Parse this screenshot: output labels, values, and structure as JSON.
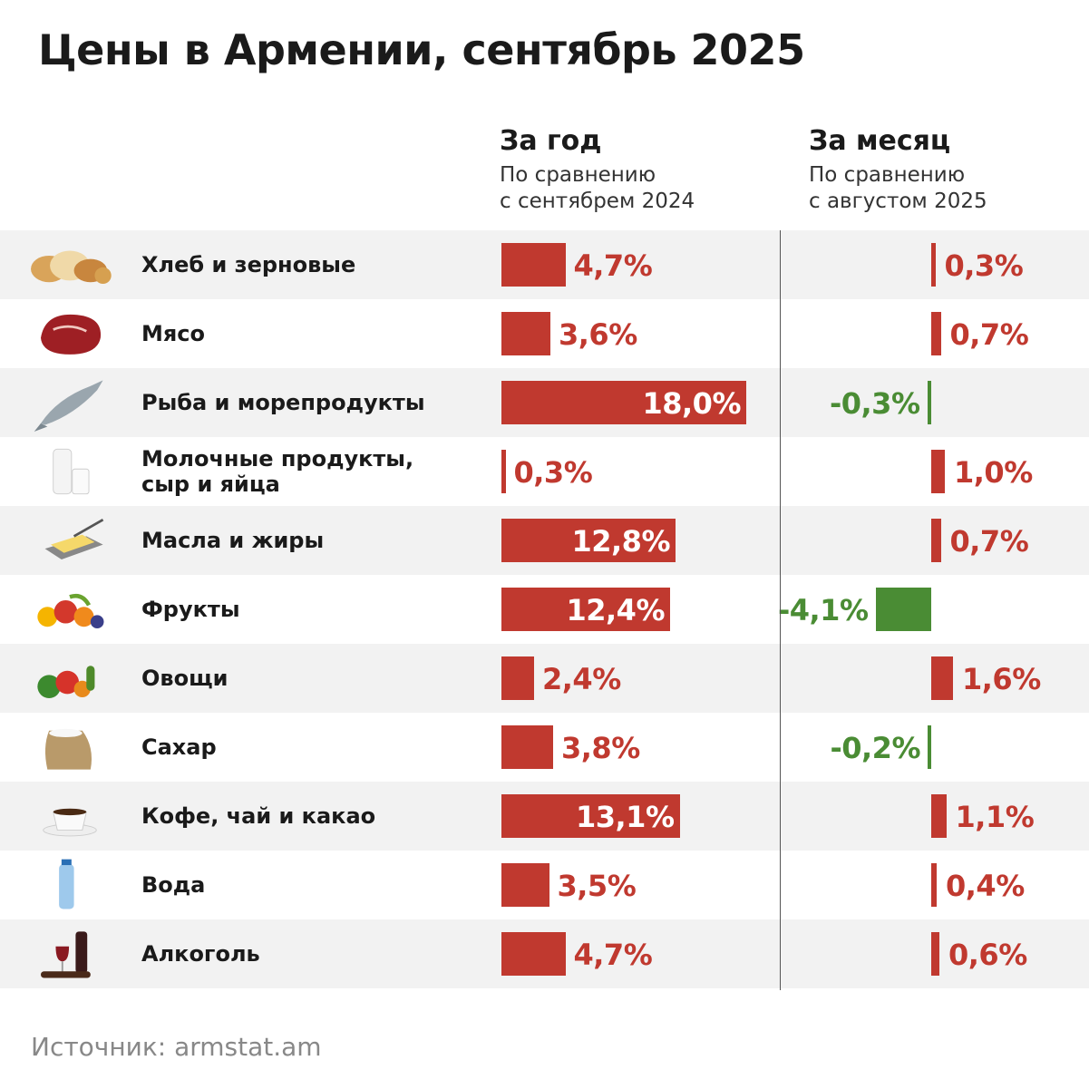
{
  "chart_data": {
    "type": "bar",
    "title": "Цены в Армении, сентябрь 2025",
    "columns": [
      {
        "key": "year",
        "heading": "За год",
        "subtitle_lines": [
          "По сравнению",
          "с сентябрем 2024"
        ]
      },
      {
        "key": "month",
        "heading": "За месяц",
        "subtitle_lines": [
          "По сравнению",
          "с августом 2025"
        ]
      }
    ],
    "categories": [
      "Хлеб и зерновые",
      "Мясо",
      "Рыба и морепродукты",
      "Молочные продукты, сыр и яйца",
      "Масла и жиры",
      "Фрукты",
      "Овощи",
      "Сахар",
      "Кофе, чай и какао",
      "Вода",
      "Алкоголь"
    ],
    "series": [
      {
        "key": "year",
        "values": [
          4.7,
          3.6,
          18.0,
          0.3,
          12.8,
          12.4,
          2.4,
          3.8,
          13.1,
          3.5,
          4.7
        ],
        "labels": [
          "4,7%",
          "3,6%",
          "18,0%",
          "0,3%",
          "12,8%",
          "12,4%",
          "2,4%",
          "3,8%",
          "13,1%",
          "3,5%",
          "4,7%"
        ]
      },
      {
        "key": "month",
        "values": [
          0.3,
          0.7,
          -0.3,
          1.0,
          0.7,
          -4.1,
          1.6,
          -0.2,
          1.1,
          0.4,
          0.6
        ],
        "labels": [
          "0,3%",
          "0,7%",
          "-0,3%",
          "1,0%",
          "0,7%",
          "-4,1%",
          "1,6%",
          "-0,2%",
          "1,1%",
          "0,4%",
          "0,6%"
        ]
      }
    ],
    "icons": [
      "bread-icon",
      "meat-icon",
      "fish-icon",
      "milk-icon",
      "butter-icon",
      "fruits-icon",
      "vegetables-icon",
      "sugar-sack-icon",
      "coffee-cup-icon",
      "water-bottle-icon",
      "wine-icon"
    ],
    "colors": {
      "positive": "#c0392f",
      "negative": "#4a8c34",
      "row_alt": "#f2f2f2"
    },
    "source": "Источник: armstat.am"
  }
}
